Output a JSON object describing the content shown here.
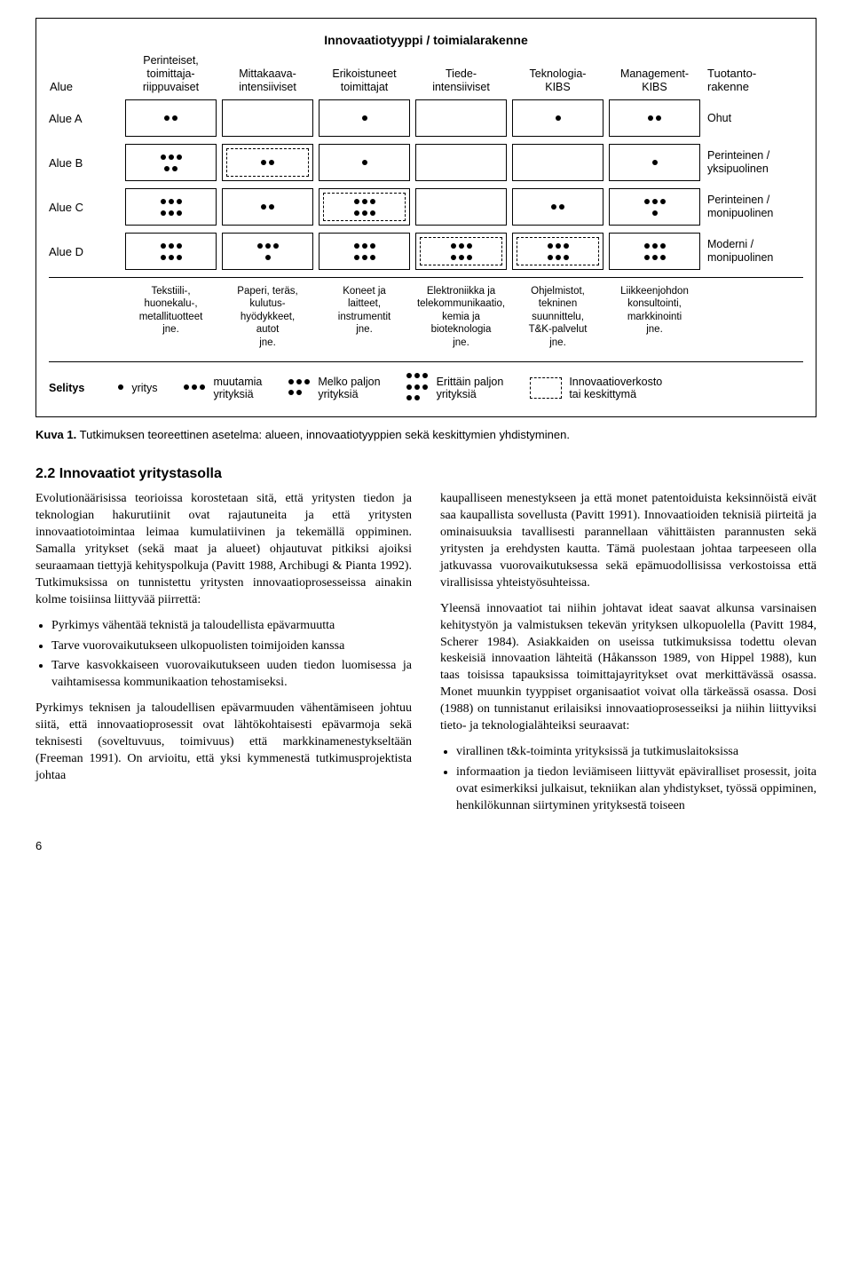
{
  "figure": {
    "title": "Innovaatiotyyppi / toimialarakenne",
    "left_header": "Alue",
    "right_header": "Tuotanto-\nrakenne",
    "columns": [
      "Perinteiset,\ntoimittaja-\nriippuvaiset",
      "Mittakaava-\nintensiiviset",
      "Erikoistuneet\ntoimittajat",
      "Tiede-\nintensiiviset",
      "Teknologia-\nKIBS",
      "Management-\nKIBS"
    ],
    "rows": [
      {
        "label": "Alue A",
        "desc": "Ohut",
        "cells": [
          {
            "dots": 2,
            "dashed": false
          },
          {
            "dots": 0,
            "dashed": false
          },
          {
            "dots": 1,
            "dashed": false
          },
          {
            "dots": 0,
            "dashed": false
          },
          {
            "dots": 1,
            "dashed": false
          },
          {
            "dots": 2,
            "dashed": false
          }
        ]
      },
      {
        "label": "Alue B",
        "desc": "Perinteinen /\nyksipuolinen",
        "cells": [
          {
            "dots": 5,
            "dashed": false
          },
          {
            "dots": 2,
            "dashed": true
          },
          {
            "dots": 1,
            "dashed": false
          },
          {
            "dots": 0,
            "dashed": false
          },
          {
            "dots": 0,
            "dashed": false
          },
          {
            "dots": 1,
            "dashed": false
          }
        ]
      },
      {
        "label": "Alue C",
        "desc": "Perinteinen /\nmonipuolinen",
        "cells": [
          {
            "dots": 6,
            "dashed": false
          },
          {
            "dots": 2,
            "dashed": false
          },
          {
            "dots": 6,
            "dashed": true
          },
          {
            "dots": 0,
            "dashed": false
          },
          {
            "dots": 2,
            "dashed": false
          },
          {
            "dots": 4,
            "dashed": false
          }
        ]
      },
      {
        "label": "Alue D",
        "desc": "Moderni /\nmonipuolinen",
        "cells": [
          {
            "dots": 6,
            "dashed": false
          },
          {
            "dots": 4,
            "dashed": false
          },
          {
            "dots": 6,
            "dashed": false
          },
          {
            "dots": 6,
            "dashed": true
          },
          {
            "dots": 6,
            "dashed": true
          },
          {
            "dots": 6,
            "dashed": false
          }
        ]
      }
    ],
    "industries": [
      "Tekstiili-,\nhuonekalu-,\nmetallituotteet\njne.",
      "Paperi, teräs,\nkulutus-\nhyödykkeet,\nautot\njne.",
      "Koneet ja\nlaitteet,\ninstrumentit\njne.",
      "Elektroniikka ja\ntelekommunikaatio,\nkemia ja\nbioteknologia\njne.",
      "Ohjelmistot,\ntekninen\nsuunnittelu,\nT&K-palvelut\njne.",
      "Liikkeenjohdon\nkonsultointi,\nmarkkinointi\njne."
    ],
    "legend": {
      "label": "Selitys",
      "items": [
        {
          "dots": 1,
          "text": "yritys"
        },
        {
          "dots": 3,
          "text": "muutamia\nyrityksiä"
        },
        {
          "dots": 5,
          "text": "Melko paljon\nyrityksiä"
        },
        {
          "dots": 8,
          "text": "Erittäin paljon\nyrityksiä"
        }
      ],
      "dashed_text": "Innovaatioverkosto\ntai keskittymä"
    }
  },
  "caption_label": "Kuva 1.",
  "caption_text": "Tutkimuksen teoreettinen asetelma: alueen, innovaatiotyyppien sekä keskittymien yhdistyminen.",
  "section_heading": "2.2 Innovaatiot yritystasolla",
  "left_column": {
    "p1": "Evolutionäärisissa teorioissa korostetaan sitä, että yritysten tiedon ja teknologian hakurutiinit ovat rajautuneita ja että yritysten innovaatiotoimintaa leimaa kumulatiivinen ja tekemällä oppiminen. Samalla yritykset (sekä maat ja alueet) ohjautuvat pitkiksi ajoiksi seuraamaan tiettyjä kehityspolkuja (Pavitt 1988, Archibugi & Pianta 1992). Tutkimuksissa on tunnistettu yritysten innovaatioprosesseissa ainakin kolme toisiinsa liittyvää piirrettä:",
    "bullets": [
      "Pyrkimys vähentää teknistä ja taloudellista epävarmuutta",
      "Tarve vuorovaikutukseen ulkopuolisten toimijoiden kanssa",
      "Tarve kasvokkaiseen vuorovaikutukseen uuden tiedon luomisessa ja vaihtamisessa kommunikaation tehostamiseksi."
    ],
    "p2": "Pyrkimys teknisen ja taloudellisen epävarmuuden vähentämiseen johtuu siitä, että innovaatioprosessit ovat lähtökohtaisesti epävarmoja sekä teknisesti (soveltuvuus, toimivuus) että markkinamenestykseltään (Freeman 1991). On arvioitu, että yksi kymmenestä tutkimusprojektista johtaa"
  },
  "right_column": {
    "p1": "kaupalliseen menestykseen ja että monet patentoiduista keksinnöistä eivät saa kaupallista sovellusta (Pavitt 1991). Innovaatioiden teknisiä piirteitä ja ominaisuuksia tavallisesti parannellaan vähittäisten parannusten sekä yritysten ja erehdysten kautta. Tämä puolestaan johtaa tarpeeseen olla jatkuvassa vuorovaikutuksessa sekä epämuodollisissa verkostoissa että virallisissa yhteistyösuhteissa.",
    "p2": "Yleensä innovaatiot tai niihin johtavat ideat saavat alkunsa varsinaisen kehitystyön ja valmistuksen tekevän yrityksen ulkopuolella (Pavitt 1984, Scherer 1984). Asiakkaiden on useissa tutkimuksissa todettu olevan keskeisiä innovaation lähteitä (Håkansson 1989, von Hippel 1988), kun taas toisissa tapauksissa toimittajayritykset ovat merkittävässä osassa. Monet muunkin tyyppiset organisaatiot voivat olla tärkeässä osassa. Dosi (1988) on tunnistanut erilaisiksi innovaatioprosesseiksi ja niihin liittyviksi tieto- ja teknologialähteiksi seuraavat:",
    "bullets": [
      "virallinen t&k-toiminta yrityksissä ja tutkimuslaitoksissa",
      "informaation ja tiedon leviämiseen liittyvät epäviralliset prosessit, joita ovat esimerkiksi julkaisut, tekniikan alan yhdistykset, työssä oppiminen, henkilökunnan siirtyminen yrityksestä toiseen"
    ]
  },
  "page_number": "6"
}
